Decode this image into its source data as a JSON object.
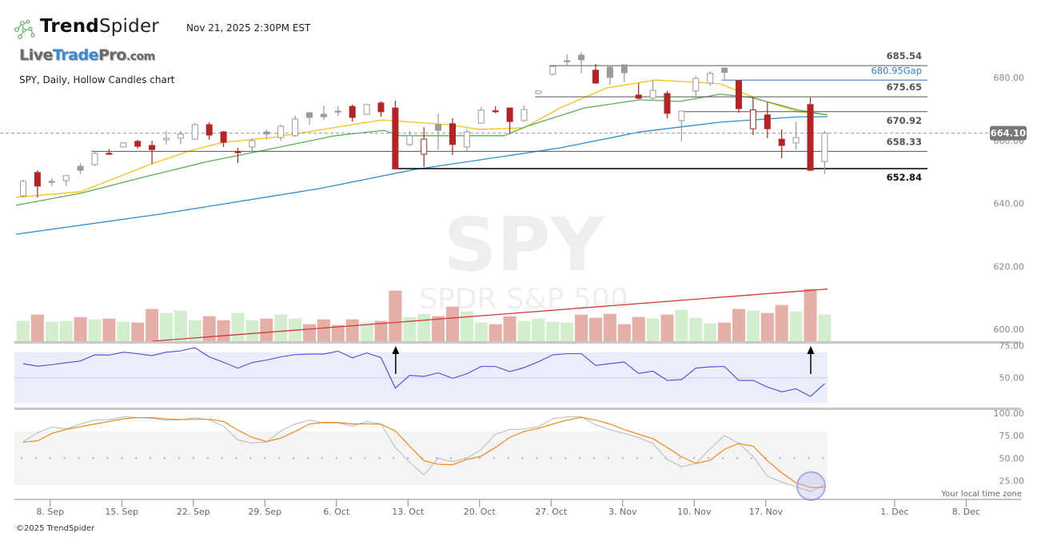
{
  "header": {
    "brand_bold": "Trend",
    "brand_light": "Spider",
    "datetime": "Nov 21, 2025 2:30PM EST",
    "sponsor_live": "Live",
    "sponsor_trade": "Trade",
    "sponsor_pro": "Pro",
    "sponsor_tld": ".com",
    "chart_title": "SPY, Daily, Hollow Candles chart"
  },
  "watermark": {
    "symbol": "SPY",
    "name": "SPDR S&P 500"
  },
  "footer": {
    "copyright": "©2025 TrendSpider",
    "timezone_note": "Your local time zone"
  },
  "colors": {
    "down": "#b52424",
    "up": "#9a9a9a",
    "vol_up": "#d3edcf",
    "vol_down": "#e5aea6",
    "ema_fast": "#f5c21b",
    "ema_mid": "#5cae5c",
    "sma_slow": "#2b8fd6",
    "rsi": "#4a4ae8",
    "stoch_k": "#b8b8b8",
    "stoch_d": "#f28a1c",
    "gap": "#2b7fd0"
  },
  "chart_data": {
    "type": "candlestick",
    "symbol": "SPY",
    "interval": "Daily",
    "candles_ohlc": [
      [
        644.2,
        649.3,
        643.7,
        648.8
      ],
      [
        651.6,
        652.3,
        643.7,
        647.3
      ],
      [
        648.8,
        649.8,
        647.3,
        648.8
      ],
      [
        649.0,
        650.8,
        647.3,
        650.6
      ],
      [
        653.6,
        654.6,
        651.1,
        652.3
      ],
      [
        654.1,
        658.2,
        653.6,
        657.7
      ],
      [
        657.7,
        659.0,
        657.2,
        657.4
      ],
      [
        659.7,
        661.2,
        659.7,
        661.0
      ],
      [
        661.5,
        662.0,
        659.2,
        659.95
      ],
      [
        660.2,
        661.7,
        654.4,
        658.9
      ],
      [
        662.0,
        665.0,
        660.5,
        662.5
      ],
      [
        662.5,
        664.8,
        660.5,
        663.8
      ],
      [
        662.2,
        667.3,
        662.2,
        666.8
      ],
      [
        666.8,
        667.6,
        662.0,
        663.5
      ],
      [
        664.5,
        664.8,
        659.7,
        661.2
      ],
      [
        658.2,
        659.4,
        654.6,
        658.2
      ],
      [
        659.7,
        662.5,
        657.9,
        661.7
      ],
      [
        664.5,
        665.3,
        662.2,
        663.8
      ],
      [
        662.7,
        666.8,
        661.7,
        666.3
      ],
      [
        663.3,
        669.6,
        663.0,
        668.6
      ],
      [
        670.6,
        670.6,
        666.8,
        669.1
      ],
      [
        670.1,
        672.9,
        668.3,
        669.3
      ],
      [
        671.1,
        672.6,
        669.6,
        671.1
      ],
      [
        672.6,
        673.2,
        667.8,
        669.1
      ],
      [
        670.1,
        673.2,
        669.9,
        673.2
      ],
      [
        673.7,
        674.2,
        669.3,
        670.9
      ],
      [
        672.1,
        674.4,
        652.8,
        652.8
      ],
      [
        660.5,
        664.8,
        660.0,
        663.3
      ],
      [
        657.4,
        666.0,
        653.4,
        662.2
      ],
      [
        666.8,
        670.4,
        658.9,
        665.0
      ],
      [
        667.1,
        668.8,
        657.2,
        660.5
      ],
      [
        659.7,
        665.5,
        658.4,
        664.5
      ],
      [
        667.3,
        672.4,
        667.3,
        671.4
      ],
      [
        671.2,
        672.6,
        670.4,
        671.2
      ],
      [
        672.1,
        672.1,
        663.8,
        667.8
      ],
      [
        668.1,
        672.9,
        667.8,
        671.6
      ],
      [
        676.7,
        677.7,
        676.5,
        677.5
      ],
      [
        682.8,
        685.3,
        682.5,
        685.3
      ],
      [
        687.1,
        689.1,
        685.3,
        687.1
      ],
      [
        688.9,
        689.9,
        683.1,
        687.4
      ],
      [
        684.1,
        686.1,
        680.0,
        680.0
      ],
      [
        685.1,
        685.3,
        679.5,
        681.8
      ],
      [
        685.8,
        685.8,
        680.3,
        683.3
      ],
      [
        676.2,
        680.0,
        674.9,
        675.2
      ],
      [
        675.2,
        681.0,
        674.4,
        677.7
      ],
      [
        676.7,
        677.5,
        668.8,
        670.4
      ],
      [
        668.1,
        671.1,
        661.5,
        671.1
      ],
      [
        677.5,
        682.3,
        675.2,
        681.5
      ],
      [
        680.0,
        683.8,
        679.2,
        683.1
      ],
      [
        684.8,
        684.8,
        681.0,
        683.4
      ],
      [
        680.8,
        680.8,
        670.6,
        671.9
      ],
      [
        665.5,
        675.4,
        663.5,
        671.5
      ],
      [
        669.9,
        673.9,
        662.5,
        665.5
      ],
      [
        662.2,
        665.3,
        656.1,
        660.2
      ],
      [
        661.0,
        667.6,
        658.9,
        662.7
      ],
      [
        673.2,
        675.4,
        652.3,
        652.3
      ],
      [
        655.1,
        664.8,
        651.1,
        664.1
      ]
    ],
    "moving_averages": [
      {
        "name": "ema_fast",
        "points": [
          [
            -0.5,
            643.7
          ],
          [
            4,
            645.5
          ],
          [
            9,
            654.4
          ],
          [
            11.8,
            658.7
          ],
          [
            14,
            661.2
          ],
          [
            17.4,
            662.7
          ],
          [
            23,
            666.8
          ],
          [
            25.1,
            668.3
          ],
          [
            29.7,
            666.8
          ],
          [
            31.9,
            665.3
          ],
          [
            35,
            665.8
          ],
          [
            37.5,
            672.1
          ],
          [
            40.8,
            678.5
          ],
          [
            44.2,
            681.0
          ],
          [
            48.7,
            679.8
          ],
          [
            51.5,
            674.7
          ],
          [
            54.2,
            670.9
          ],
          [
            56.2,
            669.9
          ]
        ]
      },
      {
        "name": "ema_mid",
        "points": [
          [
            -0.5,
            641.2
          ],
          [
            4,
            645.0
          ],
          [
            8.4,
            650.1
          ],
          [
            12.9,
            655.1
          ],
          [
            17.4,
            659.2
          ],
          [
            21.8,
            663.3
          ],
          [
            25.2,
            665.0
          ],
          [
            26.3,
            663.3
          ],
          [
            33.6,
            663.3
          ],
          [
            35.2,
            666.3
          ],
          [
            39.2,
            672.1
          ],
          [
            43.1,
            674.7
          ],
          [
            45.9,
            674.2
          ],
          [
            48.7,
            676.5
          ],
          [
            50.9,
            675.4
          ],
          [
            54.2,
            671.4
          ],
          [
            56.2,
            669.9
          ]
        ]
      },
      {
        "name": "sma_slow",
        "points": [
          [
            -0.5,
            632.0
          ],
          [
            9.6,
            638.4
          ],
          [
            20.7,
            646.5
          ],
          [
            27.4,
            652.6
          ],
          [
            31.9,
            655.6
          ],
          [
            37.5,
            659.4
          ],
          [
            43.1,
            664.5
          ],
          [
            48.7,
            667.6
          ],
          [
            54.2,
            669.3
          ],
          [
            56.2,
            669.3
          ]
        ]
      }
    ],
    "levels": [
      {
        "price": 685.54,
        "label": "685.54",
        "from_index": 37,
        "kind": "resistance"
      },
      {
        "price": 680.95,
        "label": "680.95",
        "suffix": "Gap",
        "from_index": 49,
        "kind": "gap"
      },
      {
        "price": 675.65,
        "label": "675.65",
        "from_index": 36,
        "kind": "resistance"
      },
      {
        "price": 670.92,
        "label": "670.92",
        "from_index": 46,
        "kind": "resistance"
      },
      {
        "price": 658.33,
        "label": "658.33",
        "from_index": 5,
        "kind": "support"
      },
      {
        "price": 652.84,
        "label": "652.84",
        "from_index": 26,
        "kind": "major-support"
      }
    ],
    "last_price": {
      "value": 664.1,
      "label": "664.10"
    },
    "price_axis": {
      "ticks": [
        "680.00",
        "660.00",
        "640.00",
        "620.00",
        "600.00"
      ],
      "values": [
        680,
        660,
        640,
        620,
        600
      ]
    },
    "volume": {
      "values": [
        38,
        50,
        36.5,
        38,
        45.5,
        41,
        42.5,
        36.5,
        35,
        60.5,
        53,
        57.5,
        39.5,
        47,
        39.5,
        53,
        39.5,
        42.5,
        50,
        42.5,
        32,
        41,
        30.5,
        41,
        35,
        38,
        95,
        45.5,
        51.5,
        47,
        65,
        56,
        35,
        32,
        47,
        38,
        42.5,
        36.5,
        35,
        50,
        44,
        51.5,
        32,
        45.5,
        42.5,
        50,
        59,
        44,
        33.5,
        35,
        60.5,
        57.5,
        53,
        68,
        56,
        98,
        50
      ],
      "direction": "GRGGRGRGRRGGGRRGGRGGRRRRGRRGGRRGGRRGGGGRRRRRGRGGGRRGRRGRG",
      "ma_line": [
        [
          9,
          0
        ],
        [
          56.2,
          98
        ]
      ]
    },
    "rsi": {
      "ticks": [
        "75.00",
        "50.00"
      ],
      "tick_values": [
        75,
        50
      ],
      "band": [
        30,
        70
      ],
      "values": [
        61.0,
        59.0,
        60.2,
        61.7,
        63.1,
        67.9,
        67.7,
        70.0,
        68.8,
        67.3,
        70.0,
        71.0,
        73.5,
        66.3,
        62.1,
        57.5,
        61.9,
        63.8,
        66.3,
        68.1,
        68.5,
        68.5,
        70.8,
        65.6,
        69.4,
        65.8,
        41.9,
        51.9,
        51.0,
        53.8,
        49.6,
        53.1,
        58.8,
        58.8,
        54.8,
        57.9,
        62.5,
        67.9,
        68.8,
        68.8,
        59.6,
        61.0,
        62.3,
        53.3,
        55.2,
        47.9,
        48.5,
        57.5,
        58.5,
        58.8,
        47.9,
        47.9,
        42.7,
        39.0,
        41.3,
        35.4,
        45.4
      ],
      "arrows_at_index": [
        26,
        55
      ]
    },
    "stochastic": {
      "ticks": [
        "100.00",
        "75.00",
        "50.00",
        "25.00"
      ],
      "tick_values": [
        100,
        75,
        50,
        25
      ],
      "band": [
        20,
        80
      ],
      "k": [
        68.4,
        78.2,
        84.7,
        82.6,
        88.0,
        92.4,
        93.0,
        96.0,
        95.4,
        94.5,
        92.1,
        92.7,
        95.1,
        92.7,
        85.6,
        70.2,
        66.9,
        67.8,
        80.3,
        88.0,
        92.4,
        89.2,
        89.2,
        85.6,
        91.0,
        88.0,
        61.9,
        45.5,
        31.3,
        50.0,
        46.1,
        50.0,
        59.5,
        76.7,
        81.8,
        82.6,
        85.0,
        93.9,
        96.0,
        96.0,
        87.1,
        81.8,
        77.6,
        72.8,
        66.3,
        48.5,
        40.5,
        44.1,
        60.4,
        75.2,
        66.3,
        52.1,
        29.8,
        23.3,
        18.2,
        12.9,
        20.3
      ],
      "d": [
        67.8,
        69.3,
        77.6,
        82.0,
        85.0,
        88.0,
        90.9,
        93.9,
        95.1,
        95.1,
        93.6,
        93.0,
        93.3,
        93.3,
        90.9,
        81.2,
        73.1,
        68.4,
        72.3,
        79.7,
        88.0,
        89.8,
        89.8,
        88.0,
        88.3,
        87.7,
        80.3,
        63.4,
        47.0,
        43.2,
        42.6,
        48.5,
        52.1,
        61.9,
        73.1,
        79.7,
        83.2,
        88.0,
        92.4,
        95.4,
        92.4,
        88.0,
        81.8,
        76.7,
        71.7,
        61.9,
        51.5,
        44.1,
        47.6,
        59.8,
        66.3,
        63.4,
        47.0,
        33.7,
        22.4,
        17.4,
        17.4
      ],
      "highlight_index": 55,
      "highlight_value": 18
    },
    "x_axis": {
      "ticks": [
        {
          "index": 2,
          "label": "8. Sep"
        },
        {
          "index": 7,
          "label": "15. Sep"
        },
        {
          "index": 12,
          "label": "22. Sep"
        },
        {
          "index": 17,
          "label": "29. Sep"
        },
        {
          "index": 22,
          "label": "6. Oct"
        },
        {
          "index": 27,
          "label": "13. Oct"
        },
        {
          "index": 32,
          "label": "20. Oct"
        },
        {
          "index": 37,
          "label": "27. Oct"
        },
        {
          "index": 42,
          "label": "3. Nov"
        },
        {
          "index": 47,
          "label": "10. Nov"
        },
        {
          "index": 52,
          "label": "17. Nov"
        },
        {
          "index": 61,
          "label": "1. Dec"
        },
        {
          "index": 66,
          "label": "8. Dec"
        }
      ]
    }
  }
}
